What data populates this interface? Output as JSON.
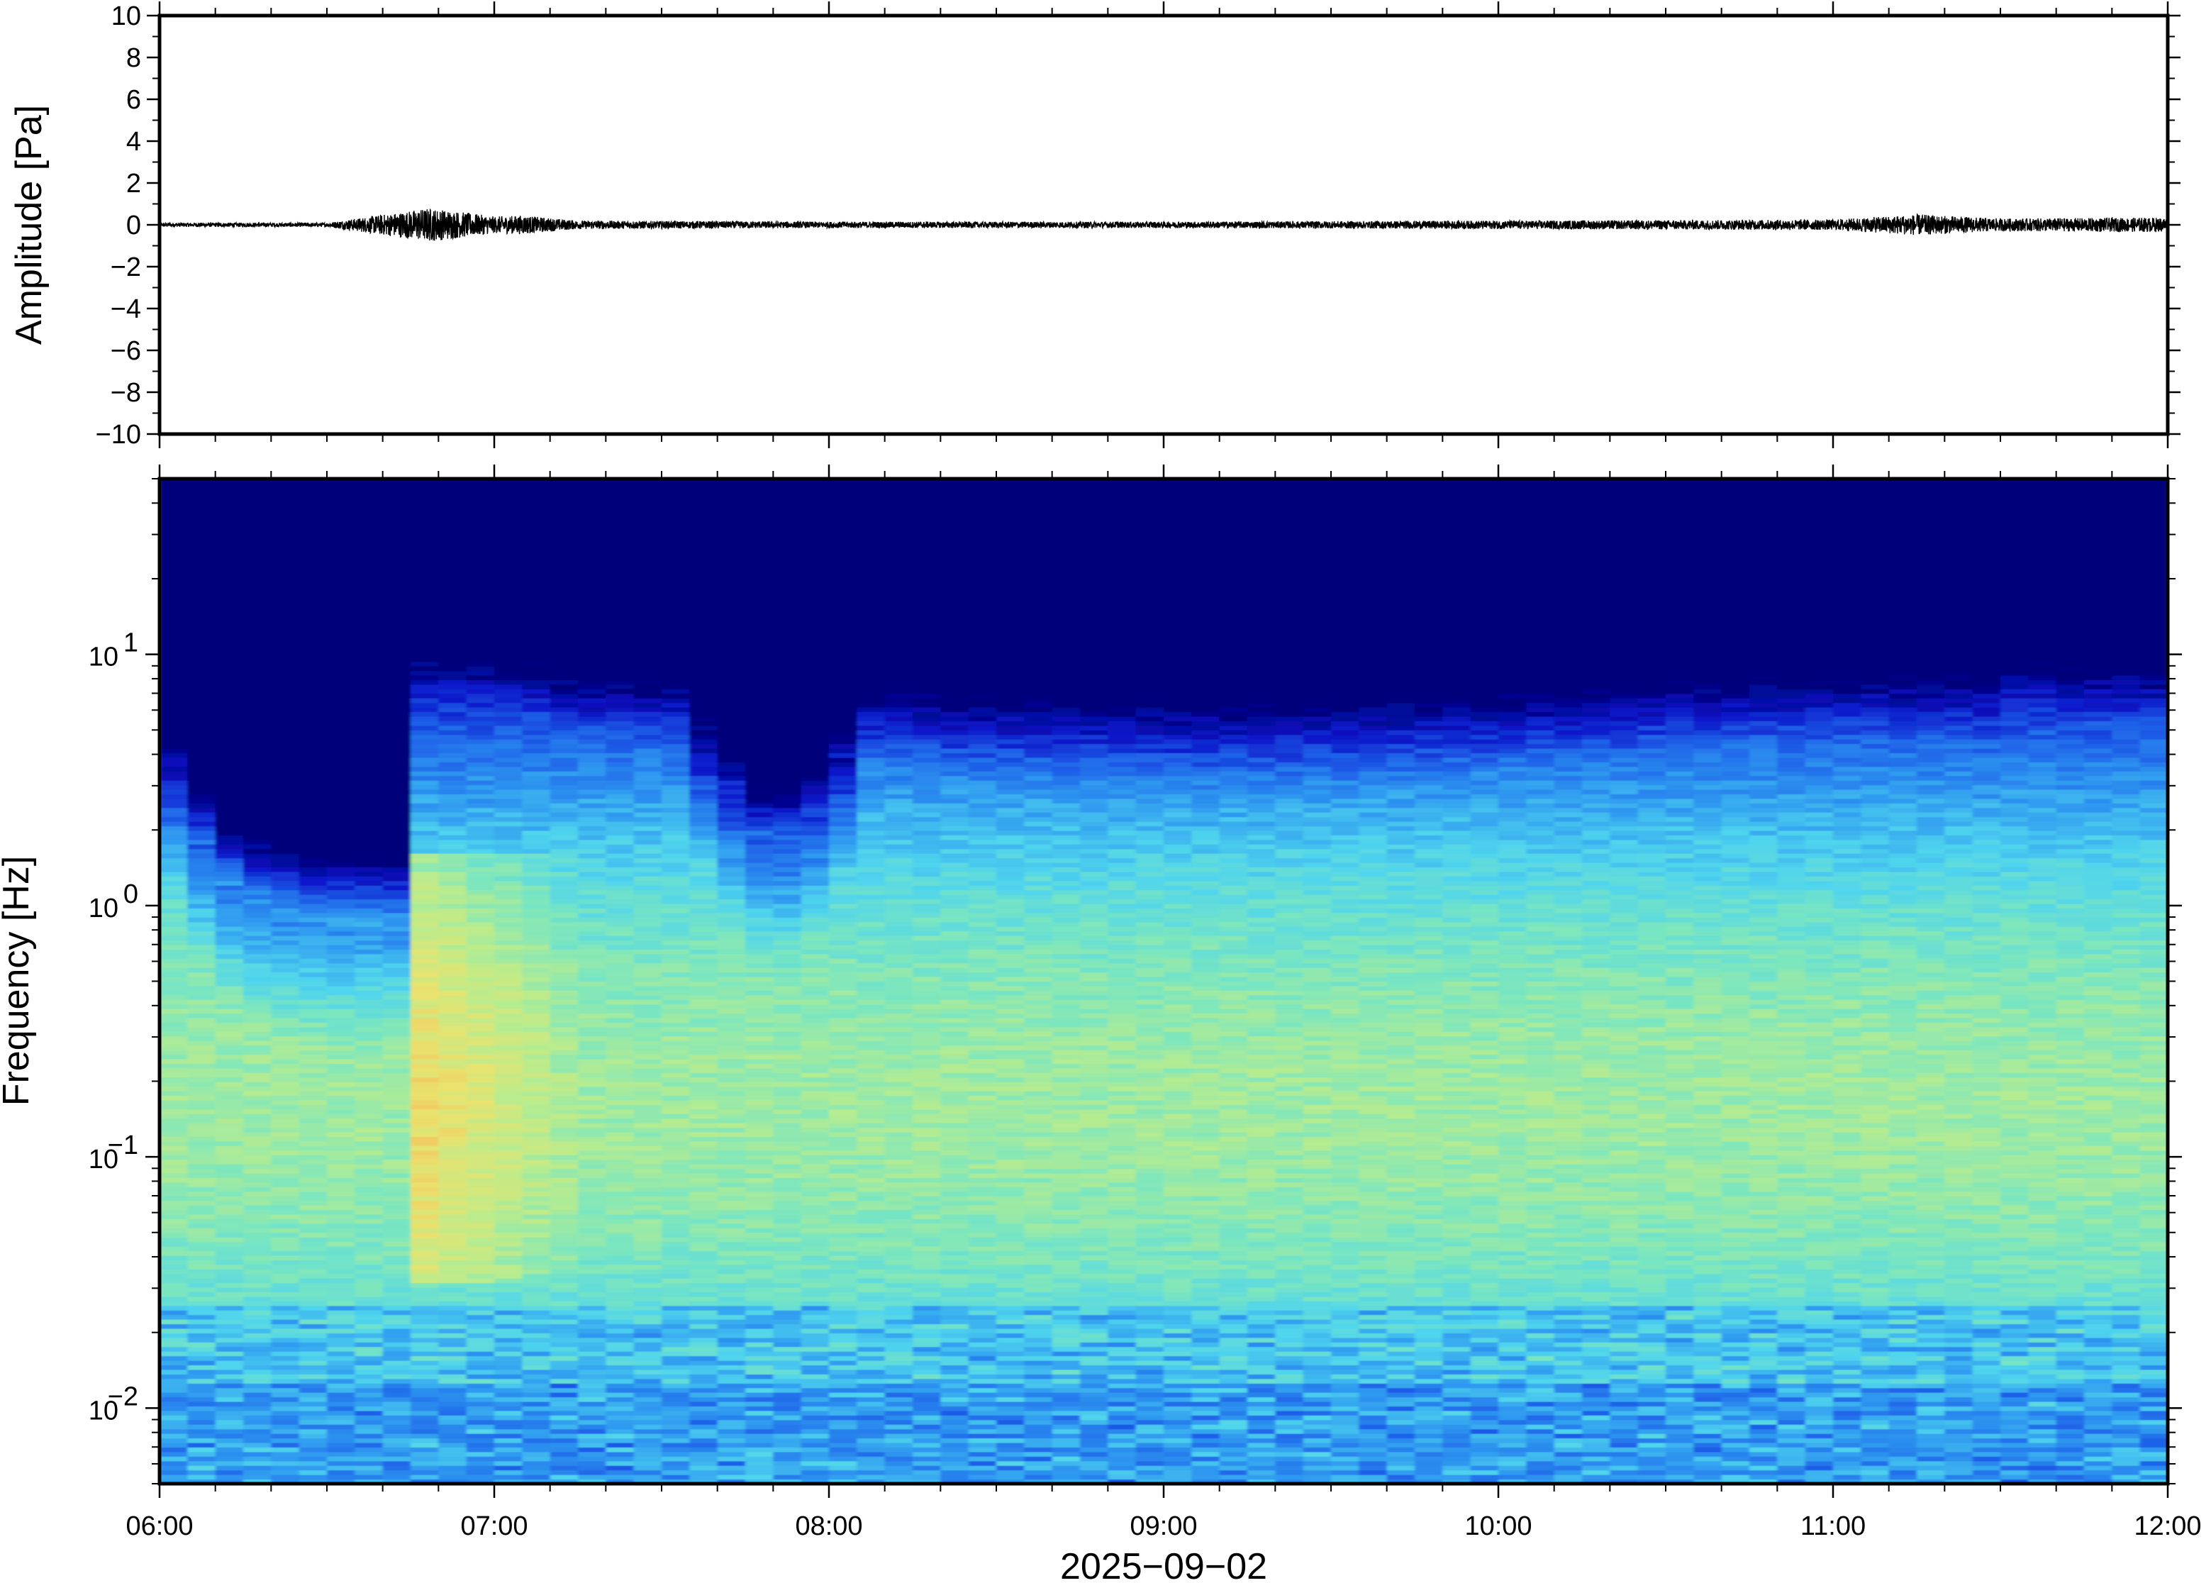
{
  "chart_data": [
    {
      "type": "line",
      "panel": "waveform",
      "title": "",
      "xlabel": "",
      "ylabel": "Amplitude [Pa]",
      "xlim": [
        "06:00",
        "12:00"
      ],
      "ylim": [
        -10,
        10
      ],
      "y_ticks": [
        "10",
        "8",
        "6",
        "4",
        "2",
        "0",
        "−2",
        "−4",
        "−6",
        "−8",
        "−10"
      ],
      "grid": false,
      "line_color": "#000000",
      "series": [
        {
          "description_values": "pressure trace centered on 0 Pa",
          "x": [
            "06:00",
            "06:30",
            "06:48",
            "06:52",
            "06:56",
            "07:00",
            "07:05",
            "07:15",
            "08:00",
            "09:00",
            "10:00",
            "11:00",
            "11:15",
            "11:30",
            "12:00"
          ],
          "y_envelope": [
            0.1,
            0.1,
            0.8,
            0.7,
            0.55,
            0.4,
            0.45,
            0.2,
            0.15,
            0.15,
            0.2,
            0.25,
            0.5,
            0.3,
            0.35
          ]
        }
      ]
    },
    {
      "type": "heatmap",
      "panel": "spectrogram",
      "title": "",
      "xlabel": "2025−09−02",
      "ylabel": "Frequency [Hz]",
      "x_ticks": [
        "06:00",
        "07:00",
        "08:00",
        "09:00",
        "10:00",
        "11:00",
        "12:00"
      ],
      "y_scale": "log",
      "ylim": [
        0.005,
        50
      ],
      "y_ticks": [
        0.01,
        0.1,
        1,
        10
      ],
      "y_tick_base": "10",
      "y_tick_exponents": [
        "−2",
        "−1",
        "0",
        "1"
      ],
      "colormap": [
        "#00007a",
        "#0a14c8",
        "#1e5fe8",
        "#2f9af0",
        "#4fd4ee",
        "#7ae6c0",
        "#b8ec8e",
        "#e9e36e",
        "#f6b85a",
        "#f08a4a"
      ],
      "grid": false,
      "features": {
        "quiet_period": [
          "06:00",
          "06:47"
        ],
        "event_onset": "06:47",
        "loud_band_hz": [
          0.05,
          0.3
        ],
        "dip_period": [
          "07:35",
          "08:07"
        ]
      }
    }
  ]
}
